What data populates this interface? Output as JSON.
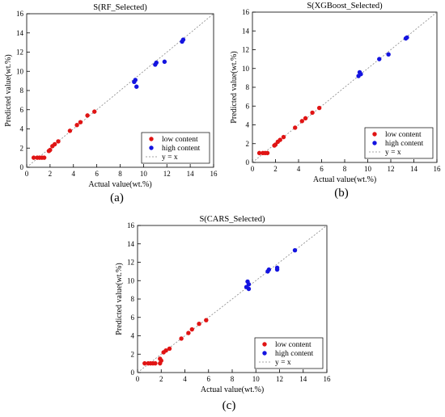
{
  "colors": {
    "low": "#e01414",
    "high": "#1414e0",
    "ref": "#888888"
  },
  "chart_data": [
    {
      "type": "scatter",
      "panel": "(a)",
      "title": "S(RF_Selected)",
      "xlabel": "Actual value(wt.%)",
      "ylabel": "Predicted value(wt.%)",
      "xlim": [
        0,
        16
      ],
      "ylim": [
        0,
        16
      ],
      "xticks": [
        "0",
        "2",
        "4",
        "6",
        "8",
        "10",
        "12",
        "14",
        "16"
      ],
      "yticks": [
        "0",
        "2",
        "4",
        "6",
        "8",
        "10",
        "12",
        "14",
        "16"
      ],
      "legend_position": "bottom-right",
      "series": [
        {
          "name": "low content",
          "color": "#e01414",
          "x": [
            0.6,
            0.9,
            1.1,
            1.3,
            1.5,
            1.9,
            2.0,
            2.2,
            2.4,
            2.7,
            3.7,
            4.3,
            4.6,
            5.2,
            5.8
          ],
          "y": [
            1.0,
            1.0,
            1.0,
            1.0,
            1.0,
            1.7,
            1.8,
            2.2,
            2.4,
            2.7,
            3.8,
            4.4,
            4.7,
            5.4,
            5.8
          ]
        },
        {
          "name": "high content",
          "color": "#1414e0",
          "x": [
            9.2,
            9.3,
            9.4,
            11.0,
            11.1,
            11.8,
            13.3,
            13.4
          ],
          "y": [
            8.9,
            9.1,
            8.4,
            10.7,
            10.9,
            11.0,
            13.1,
            13.3
          ]
        },
        {
          "name": "y = x",
          "type": "reference-line"
        }
      ]
    },
    {
      "type": "scatter",
      "panel": "(b)",
      "title": "S(XGBoost_Selected)",
      "xlabel": "Actual value(wt.%)",
      "ylabel": "Predicted value(wt.%)",
      "xlim": [
        0,
        16
      ],
      "ylim": [
        0,
        16
      ],
      "xticks": [
        "0",
        "2",
        "4",
        "6",
        "8",
        "10",
        "12",
        "14",
        "16"
      ],
      "yticks": [
        "0",
        "2",
        "4",
        "6",
        "8",
        "10",
        "12",
        "14",
        "16"
      ],
      "legend_position": "bottom-right",
      "series": [
        {
          "name": "low content",
          "color": "#e01414",
          "x": [
            0.6,
            0.9,
            1.1,
            1.3,
            1.9,
            2.0,
            2.2,
            2.4,
            2.7,
            3.7,
            4.3,
            4.6,
            5.2,
            5.8
          ],
          "y": [
            1.0,
            1.0,
            1.0,
            1.0,
            1.8,
            1.9,
            2.2,
            2.4,
            2.7,
            3.7,
            4.4,
            4.7,
            5.3,
            5.8
          ]
        },
        {
          "name": "high content",
          "color": "#1414e0",
          "x": [
            9.2,
            9.3,
            9.4,
            11.0,
            11.8,
            13.3,
            13.4
          ],
          "y": [
            9.2,
            9.6,
            9.4,
            11.0,
            11.5,
            13.2,
            13.3
          ]
        },
        {
          "name": "y = x",
          "type": "reference-line"
        }
      ]
    },
    {
      "type": "scatter",
      "panel": "(c)",
      "title": "S(CARS_Selected)",
      "xlabel": "Actual value(wt.%)",
      "ylabel": "Predicted value(wt.%)",
      "xlim": [
        0,
        16
      ],
      "ylim": [
        0,
        16
      ],
      "xticks": [
        "0",
        "2",
        "4",
        "6",
        "8",
        "10",
        "12",
        "14",
        "16"
      ],
      "yticks": [
        "0",
        "2",
        "4",
        "6",
        "8",
        "10",
        "12",
        "14",
        "16"
      ],
      "legend_position": "bottom-right",
      "series": [
        {
          "name": "low content",
          "color": "#e01414",
          "x": [
            0.6,
            0.9,
            1.1,
            1.3,
            1.5,
            1.9,
            1.9,
            2.0,
            2.2,
            2.4,
            2.7,
            3.7,
            4.3,
            4.6,
            5.2,
            5.8
          ],
          "y": [
            1.0,
            1.0,
            1.0,
            1.0,
            1.0,
            1.0,
            1.5,
            1.3,
            2.2,
            2.4,
            2.6,
            3.7,
            4.3,
            4.7,
            5.3,
            5.7
          ]
        },
        {
          "name": "high content",
          "color": "#1414e0",
          "x": [
            9.2,
            9.3,
            9.4,
            9.4,
            11.0,
            11.1,
            11.8,
            11.8,
            13.3
          ],
          "y": [
            9.3,
            9.9,
            9.1,
            9.6,
            11.0,
            11.2,
            11.2,
            11.4,
            13.3
          ]
        },
        {
          "name": "y = x",
          "type": "reference-line"
        }
      ]
    }
  ]
}
